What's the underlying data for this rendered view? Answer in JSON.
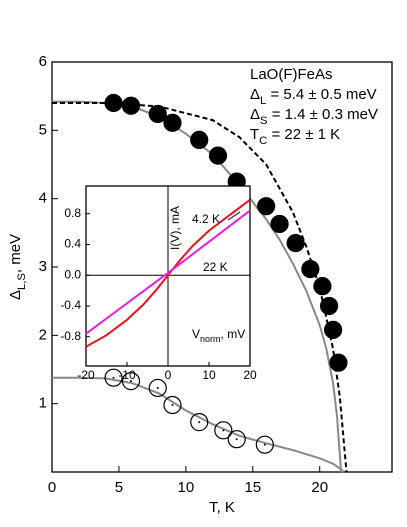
{
  "chart_data": [
    {
      "type": "scatter",
      "xlabel": "T, K",
      "ylabel": {
        "text": "Δ",
        "sub": "L,S",
        "rest": ", meV"
      },
      "xlim": [
        0,
        25.4
      ],
      "ylim": [
        0,
        6
      ],
      "xticks": [
        0,
        5,
        10,
        15,
        20
      ],
      "yticks": [
        1,
        2,
        3,
        4,
        5,
        6
      ],
      "annotations": [
        {
          "text": "LaO(F)FeAs"
        },
        {
          "text": "Δ",
          "sub": "L",
          "rest": " = 5.4 ± 0.5 meV"
        },
        {
          "text": "Δ",
          "sub": "S",
          "rest": " = 1.4 ± 0.3 meV"
        },
        {
          "text": "T",
          "sub": "C",
          "rest": " = 22 ± 1 K"
        }
      ],
      "series": [
        {
          "style": "line",
          "color": "#888888",
          "x": [
            0,
            2,
            4,
            6,
            8,
            10,
            12,
            14,
            16,
            17,
            18,
            19,
            20,
            20.5,
            21,
            21.3,
            21.6
          ],
          "values": [
            5.42,
            5.42,
            5.4,
            5.35,
            5.2,
            4.95,
            4.65,
            4.2,
            3.7,
            3.4,
            3.05,
            2.65,
            2.15,
            1.8,
            1.3,
            0.8,
            0
          ]
        },
        {
          "style": "dashed",
          "color": "#000000",
          "x": [
            0,
            4,
            8,
            12,
            14,
            16,
            18,
            19,
            20,
            21,
            21.5,
            22
          ],
          "values": [
            5.4,
            5.4,
            5.35,
            5.15,
            4.9,
            4.5,
            3.8,
            3.3,
            2.7,
            1.8,
            1.1,
            0
          ]
        },
        {
          "style": "line",
          "color": "#888888",
          "x": [
            0,
            2,
            4,
            6,
            8,
            10,
            12,
            14,
            16,
            18,
            20,
            21,
            21.5,
            21.8
          ],
          "values": [
            1.38,
            1.38,
            1.37,
            1.3,
            1.15,
            0.9,
            0.7,
            0.53,
            0.42,
            0.32,
            0.2,
            0.12,
            0.05,
            0
          ]
        },
        {
          "style": "filled",
          "color": "#000000",
          "x": [
            4.6,
            5.9,
            7.9,
            9.0,
            11.0,
            12.4,
            13.8,
            16.0,
            17.0,
            18.2,
            19.3,
            20.2,
            20.7,
            21.0,
            21.4
          ],
          "values": [
            5.4,
            5.36,
            5.24,
            5.11,
            4.86,
            4.63,
            4.25,
            3.89,
            3.63,
            3.35,
            2.97,
            2.72,
            2.43,
            2.08,
            1.6
          ]
        },
        {
          "style": "open",
          "color": "#000000",
          "x": [
            4.6,
            5.9,
            7.9,
            9.0,
            11.0,
            12.8,
            13.8,
            15.9
          ],
          "values": [
            1.38,
            1.33,
            1.23,
            0.98,
            0.73,
            0.61,
            0.48,
            0.4
          ]
        }
      ]
    },
    {
      "type": "line",
      "xlabel": {
        "text": "V",
        "sub": "norm",
        "rest": ", mV"
      },
      "ylabel": "I(V), mA",
      "xlim": [
        -20,
        20
      ],
      "ylim": [
        -1.18,
        1.16
      ],
      "xticks": [
        -20,
        -10,
        0,
        10,
        20
      ],
      "yticks": [
        -0.8,
        -0.4,
        {
          "value": 0,
          "label": "0.0"
        },
        0.4,
        0.8
      ],
      "annotations": [
        "4.2 K",
        "22 K"
      ],
      "series": [
        {
          "style": "line",
          "color": "#e8141c",
          "x": [
            -20,
            -15,
            -10,
            -6,
            -3,
            0,
            3,
            6,
            10,
            15,
            20
          ],
          "values": [
            -0.93,
            -0.78,
            -0.58,
            -0.38,
            -0.2,
            0,
            0.2,
            0.38,
            0.58,
            0.78,
            0.98
          ]
        },
        {
          "style": "line",
          "color": "#e81ce0",
          "x": [
            -20,
            0,
            20
          ],
          "values": [
            -0.76,
            0.03,
            0.84
          ]
        }
      ]
    }
  ]
}
